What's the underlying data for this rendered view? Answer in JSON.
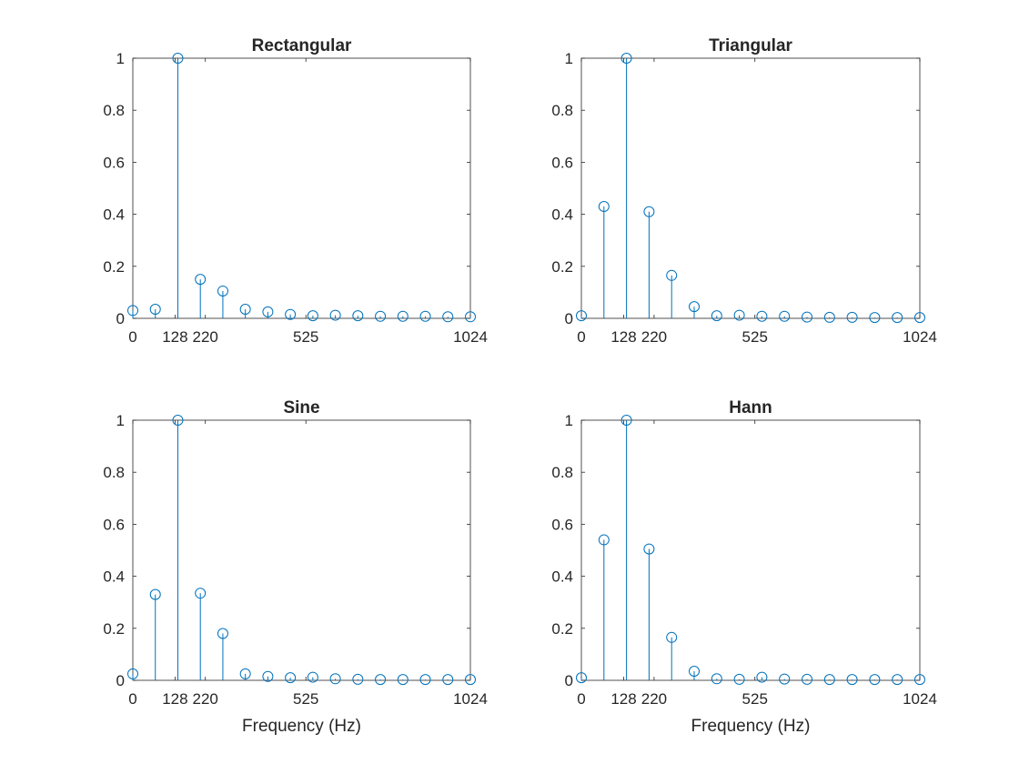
{
  "colors": {
    "stem": "#0072bd",
    "axis": "#262626",
    "background": "#ffffff"
  },
  "chart_data": [
    {
      "type": "stem",
      "title": "Rectangular",
      "xlabel": "",
      "ylabel": "",
      "xlim": [
        0,
        1024
      ],
      "ylim": [
        0,
        1
      ],
      "xticks": [
        0,
        128,
        220,
        525,
        1024
      ],
      "xtick_labels": [
        "0",
        "128",
        "220",
        "525",
        "1024"
      ],
      "yticks": [
        0,
        0.2,
        0.4,
        0.6,
        0.8,
        1
      ],
      "ytick_labels": [
        "0",
        "0.2",
        "0.4",
        "0.6",
        "0.8",
        "1"
      ],
      "grid": false,
      "x": [
        0,
        68.27,
        136.53,
        204.8,
        273.07,
        341.33,
        409.6,
        477.87,
        546.13,
        614.4,
        682.67,
        750.93,
        819.2,
        887.47,
        955.73,
        1024
      ],
      "values": [
        0.03,
        0.035,
        1.0,
        0.15,
        0.105,
        0.035,
        0.025,
        0.015,
        0.01,
        0.012,
        0.01,
        0.008,
        0.008,
        0.008,
        0.006,
        0.006
      ]
    },
    {
      "type": "stem",
      "title": "Triangular",
      "xlabel": "",
      "ylabel": "",
      "xlim": [
        0,
        1024
      ],
      "ylim": [
        0,
        1
      ],
      "xticks": [
        0,
        128,
        220,
        525,
        1024
      ],
      "xtick_labels": [
        "0",
        "128",
        "220",
        "525",
        "1024"
      ],
      "yticks": [
        0,
        0.2,
        0.4,
        0.6,
        0.8,
        1
      ],
      "ytick_labels": [
        "0",
        "0.2",
        "0.4",
        "0.6",
        "0.8",
        "1"
      ],
      "grid": false,
      "x": [
        0,
        68.27,
        136.53,
        204.8,
        273.07,
        341.33,
        409.6,
        477.87,
        546.13,
        614.4,
        682.67,
        750.93,
        819.2,
        887.47,
        955.73,
        1024
      ],
      "values": [
        0.01,
        0.43,
        1.0,
        0.41,
        0.165,
        0.045,
        0.01,
        0.012,
        0.008,
        0.008,
        0.005,
        0.004,
        0.004,
        0.003,
        0.003,
        0.003
      ]
    },
    {
      "type": "stem",
      "title": "Sine",
      "xlabel": "Frequency (Hz)",
      "ylabel": "",
      "xlim": [
        0,
        1024
      ],
      "ylim": [
        0,
        1
      ],
      "xticks": [
        0,
        128,
        220,
        525,
        1024
      ],
      "xtick_labels": [
        "0",
        "128",
        "220",
        "525",
        "1024"
      ],
      "yticks": [
        0,
        0.2,
        0.4,
        0.6,
        0.8,
        1
      ],
      "ytick_labels": [
        "0",
        "0.2",
        "0.4",
        "0.6",
        "0.8",
        "1"
      ],
      "grid": false,
      "x": [
        0,
        68.27,
        136.53,
        204.8,
        273.07,
        341.33,
        409.6,
        477.87,
        546.13,
        614.4,
        682.67,
        750.93,
        819.2,
        887.47,
        955.73,
        1024
      ],
      "values": [
        0.025,
        0.33,
        1.0,
        0.335,
        0.18,
        0.025,
        0.015,
        0.01,
        0.012,
        0.006,
        0.004,
        0.003,
        0.003,
        0.003,
        0.003,
        0.003
      ]
    },
    {
      "type": "stem",
      "title": "Hann",
      "xlabel": "Frequency (Hz)",
      "ylabel": "",
      "xlim": [
        0,
        1024
      ],
      "ylim": [
        0,
        1
      ],
      "xticks": [
        0,
        128,
        220,
        525,
        1024
      ],
      "xtick_labels": [
        "0",
        "128",
        "220",
        "525",
        "1024"
      ],
      "yticks": [
        0,
        0.2,
        0.4,
        0.6,
        0.8,
        1
      ],
      "ytick_labels": [
        "0",
        "0.2",
        "0.4",
        "0.6",
        "0.8",
        "1"
      ],
      "grid": false,
      "x": [
        0,
        68.27,
        136.53,
        204.8,
        273.07,
        341.33,
        409.6,
        477.87,
        546.13,
        614.4,
        682.67,
        750.93,
        819.2,
        887.47,
        955.73,
        1024
      ],
      "values": [
        0.01,
        0.54,
        1.0,
        0.505,
        0.165,
        0.035,
        0.006,
        0.004,
        0.012,
        0.005,
        0.004,
        0.003,
        0.003,
        0.003,
        0.003,
        0.003
      ]
    }
  ]
}
